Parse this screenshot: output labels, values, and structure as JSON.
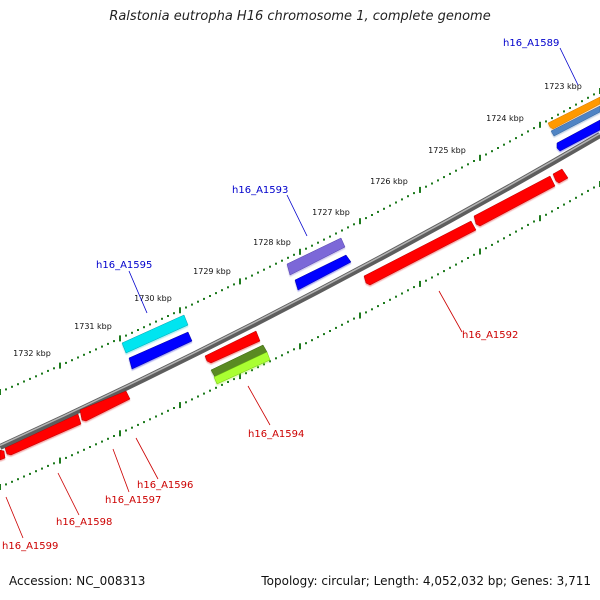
{
  "title": "Ralstonia eutropha H16 chromosome 1, complete genome",
  "footer": {
    "accession": "Accession: NC_008313",
    "info": "Topology: circular; Length: 4,052,032 bp; Genes: 3,711"
  },
  "colors": {
    "backbone": "#808080",
    "ticks": "#1e7a1e",
    "forward_label": "#0000cc",
    "reverse_label": "#cc0000",
    "red_gene": "#ff0000",
    "blue_gene": "#0000ff",
    "cyan_gene": "#00e5f0",
    "purple_gene": "#7b68d8",
    "orange_gene": "#ff9900",
    "steel_gene": "#4f84c4",
    "olive_gene": "#5a8a20",
    "lime_gene": "#aaff33"
  },
  "kbp_ticks": [
    "1723 kbp",
    "1724 kbp",
    "1725 kbp",
    "1726 kbp",
    "1727 kbp",
    "1728 kbp",
    "1729 kbp",
    "1730 kbp",
    "1731 kbp",
    "1732 kbp"
  ],
  "gene_labels": {
    "forward": [
      "h16_A1589",
      "h16_A1593",
      "h16_A1595"
    ],
    "reverse": [
      "h16_A1592",
      "h16_A1594",
      "h16_A1596",
      "h16_A1597",
      "h16_A1598",
      "h16_A1599"
    ]
  }
}
